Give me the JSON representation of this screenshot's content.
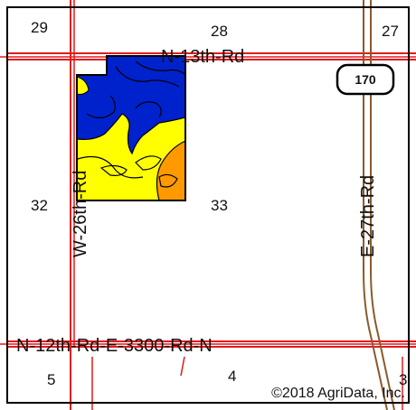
{
  "map": {
    "sections": {
      "s29": "29",
      "s28": "28",
      "s27": "27",
      "s32": "32",
      "s33": "33",
      "s5": "5",
      "s4": "4",
      "s3": "3"
    },
    "roads": {
      "north": "N-13th-Rd",
      "west": "W-26th-Rd",
      "east": "E-27th-Rd",
      "south": "N-12th-Rd-E-3300-Rd-N"
    },
    "highway_shield": "170",
    "copyright": "©2018 AgriData, Inc.",
    "colors": {
      "frame": "#000000",
      "road_primary": "#e31a1c",
      "highway": "#8b5a2b",
      "soil_blue": "#0022cc",
      "soil_yellow": "#ffff00",
      "soil_orange": "#ff9900"
    }
  }
}
